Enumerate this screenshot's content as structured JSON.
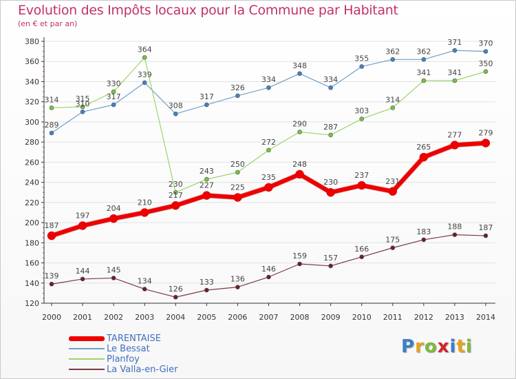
{
  "title": "Evolution des Impôts locaux pour la Commune par Habitant",
  "subtitle": "(en € et par an)",
  "colors": {
    "title": "#c2306a",
    "axis": "#333333",
    "grid": "#e2e2e2"
  },
  "logo": {
    "letters": [
      {
        "char": "P",
        "color": "#3d7fc8"
      },
      {
        "char": "r",
        "color": "#e8a21d"
      },
      {
        "char": "o",
        "color": "#7fb93a"
      },
      {
        "char": "x",
        "color": "#d8232a"
      },
      {
        "char": "i",
        "color": "#3d7fc8"
      },
      {
        "char": "t",
        "color": "#e8a21d"
      },
      {
        "char": "i",
        "color": "#7fb93a"
      }
    ]
  },
  "chart_data": {
    "type": "line",
    "title": "Evolution des Impôts locaux pour la Commune par Habitant",
    "subtitle": "(en € et par an)",
    "xlabel": "",
    "ylabel": "",
    "x": [
      "2000",
      "2001",
      "2002",
      "2003",
      "2004",
      "2005",
      "2006",
      "2007",
      "2008",
      "2009",
      "2010",
      "2011",
      "2012",
      "2013",
      "2014"
    ],
    "ylim": [
      120,
      380
    ],
    "yticks": [
      "120",
      "140",
      "160",
      "180",
      "200",
      "220",
      "240",
      "260",
      "280",
      "300",
      "320",
      "340",
      "360",
      "380"
    ],
    "grid": "horizontal",
    "legend_position": "bottom-left",
    "series": [
      {
        "name": "Le Bessat",
        "color": "#6f9fcb",
        "marker_color": "#3f82c6",
        "width": 1.2,
        "label_position": "above",
        "values": [
          289,
          310,
          317,
          339,
          308,
          317,
          326,
          334,
          348,
          334,
          355,
          362,
          362,
          371,
          370
        ],
        "labels": [
          "289",
          "310",
          "317",
          "339",
          "308",
          "317",
          "326",
          "334",
          "348",
          "334",
          "355",
          "362",
          "362",
          "371",
          "370"
        ]
      },
      {
        "name": "Planfoy",
        "color": "#9bd36b",
        "marker_color": "#78c23f",
        "width": 1.2,
        "label_position": "above",
        "values": [
          314,
          315,
          330,
          364,
          230,
          243,
          250,
          272,
          290,
          287,
          303,
          314,
          341,
          341,
          350
        ],
        "labels": [
          "314",
          "315",
          "330",
          "364",
          "230",
          "243",
          "250",
          "272",
          "290",
          "287",
          "303",
          "314",
          "341",
          "341",
          "350"
        ]
      },
      {
        "name": "La Valla-en-Gier",
        "color": "#7a3a42",
        "marker_color": "#6b1f29",
        "width": 1.2,
        "label_position": "above",
        "values": [
          139,
          144,
          145,
          134,
          126,
          133,
          136,
          146,
          159,
          157,
          166,
          175,
          183,
          188,
          187
        ],
        "labels": [
          "139",
          "144",
          "145",
          "134",
          "126",
          "133",
          "136",
          "146",
          "159",
          "157",
          "166",
          "175",
          "183",
          "188",
          "187"
        ]
      },
      {
        "name": "TARENTAISE",
        "color": "#ee0000",
        "marker_color": "#ee0000",
        "width": 6,
        "label_position": "above",
        "values": [
          187,
          197,
          204,
          210,
          217,
          227,
          225,
          235,
          248,
          230,
          237,
          231,
          265,
          277,
          279
        ],
        "labels": [
          "187",
          "197",
          "204",
          "210",
          "217",
          "227",
          "225",
          "235",
          "248",
          "230",
          "237",
          "231",
          "265",
          "277",
          "279"
        ]
      }
    ]
  },
  "legend": [
    {
      "name": "TARENTAISE",
      "color": "#ee0000",
      "thickness": 7
    },
    {
      "name": "Le Bessat",
      "color": "#6f9fcb",
      "thickness": 1.5
    },
    {
      "name": "Planfoy",
      "color": "#9bd36b",
      "thickness": 1.5
    },
    {
      "name": "La Valla-en-Gier",
      "color": "#7a3a42",
      "thickness": 1.5
    }
  ]
}
